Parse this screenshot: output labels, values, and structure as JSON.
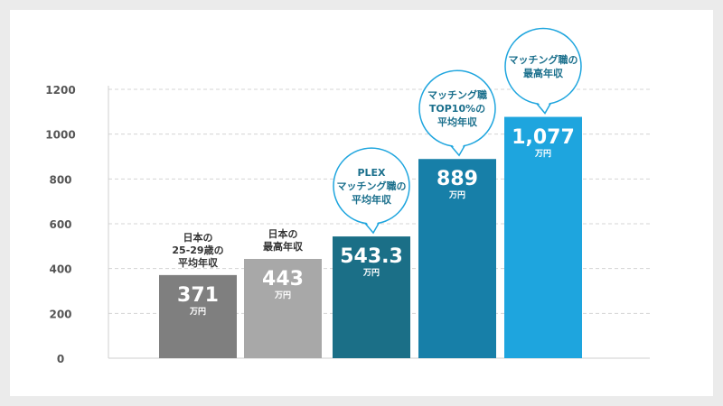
{
  "chart_data": {
    "type": "bar",
    "categories": [
      "日本の25-29歳の平均年収",
      "日本の最高年収",
      "PLEXマッチング職の平均年収",
      "マッチング職TOP10%の平均年収",
      "マッチング職の最高年収"
    ],
    "values": [
      371,
      443,
      543.3,
      889,
      1077
    ],
    "value_labels": [
      "371",
      "443",
      "543.3",
      "889",
      "1,077"
    ],
    "unit": "万円",
    "label_lines": [
      [
        "日本の",
        "25-29歳の",
        "平均年収"
      ],
      [
        "日本の",
        "最高年収"
      ],
      [
        "PLEX",
        "マッチング職の",
        "平均年収"
      ],
      [
        "マッチング職",
        "TOP10%の",
        "平均年収"
      ],
      [
        "マッチング職の",
        "最高年収"
      ]
    ],
    "label_styles": [
      "plain",
      "plain",
      "bubble",
      "bubble",
      "bubble"
    ],
    "colors": [
      "#7f7f7f",
      "#a8a8a8",
      "#1b6f87",
      "#177fa8",
      "#1ea5de"
    ],
    "bubble_border_color": "#1ea5de",
    "ylim": [
      0,
      1200
    ],
    "yticks": [
      0,
      200,
      400,
      600,
      800,
      1000,
      1200
    ],
    "grid": true,
    "title": "",
    "xlabel": "",
    "ylabel": ""
  }
}
